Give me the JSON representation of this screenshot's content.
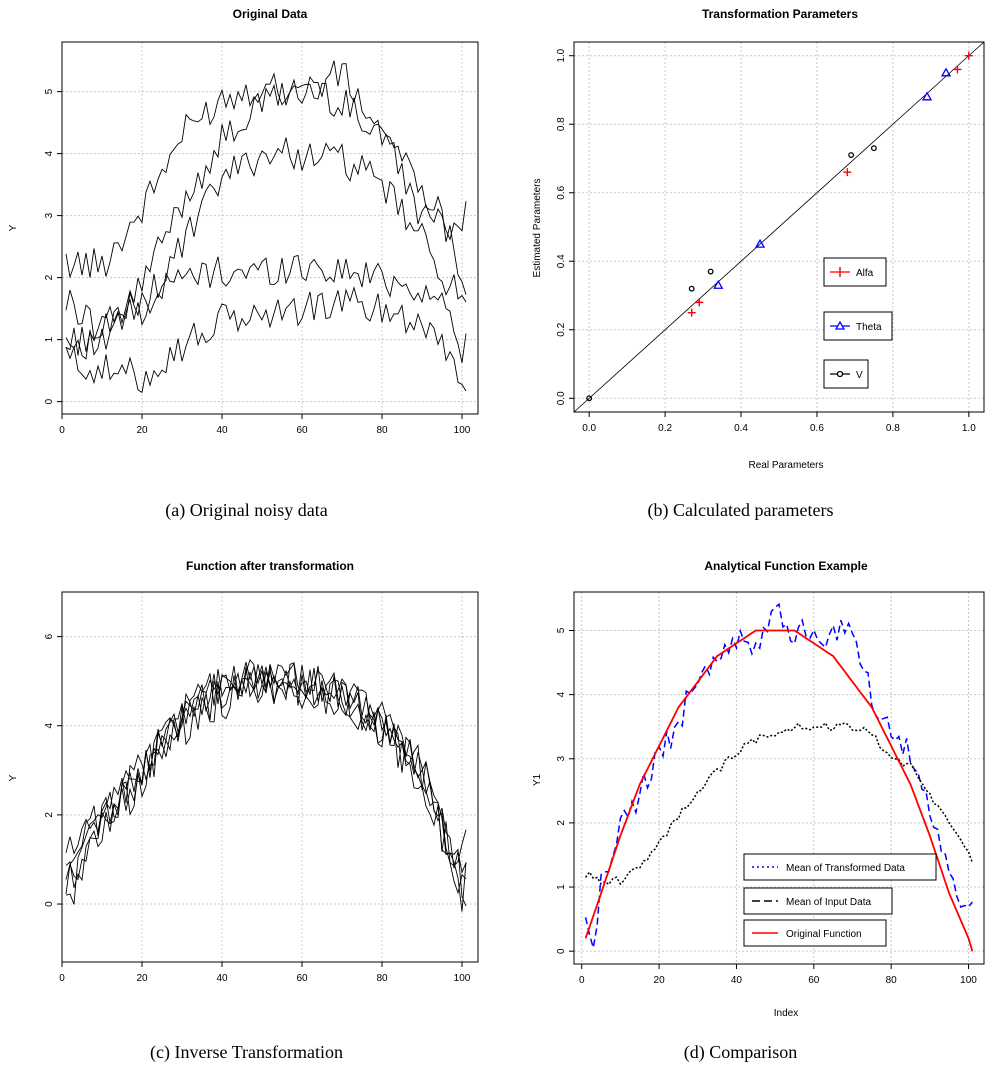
{
  "panels": [
    {
      "title": "Original Data",
      "caption": "(a)  Original noisy data",
      "xlabel": "",
      "ylabel": "Y"
    },
    {
      "title": "Transformation Parameters",
      "caption": "(b)  Calculated parameters",
      "xlabel": "Real Parameters",
      "ylabel": "Estimated Parameters"
    },
    {
      "title": "Function after transformation",
      "caption": "(c)  Inverse Transformation",
      "xlabel": "",
      "ylabel": "Y"
    },
    {
      "title": "Analytical Function Example",
      "caption": "(d)  Comparison",
      "xlabel": "Index",
      "ylabel": "Y1"
    }
  ],
  "chart_data": [
    {
      "type": "line",
      "title": "Original Data",
      "xlabel": "",
      "ylabel": "Y",
      "xlim": [
        0,
        104
      ],
      "ylim": [
        -0.2,
        5.8
      ],
      "xticks": [
        0,
        20,
        40,
        60,
        80,
        100
      ],
      "yticks": [
        0,
        1,
        2,
        3,
        4,
        5
      ],
      "grid": true,
      "line_color": "#000000",
      "series": [
        {
          "x": [
            1,
            10,
            20,
            30,
            40,
            50,
            60,
            70,
            80,
            90,
            95,
            100,
            101
          ],
          "values": [
            2.25,
            2.2,
            3.1,
            4.3,
            4.9,
            5.1,
            5.0,
            5.3,
            4.3,
            3.0,
            2.8,
            3.0,
            3.0
          ]
        },
        {
          "x": [
            1,
            10,
            20,
            30,
            40,
            50,
            60,
            70,
            80,
            90,
            95,
            100,
            101
          ],
          "values": [
            1.0,
            0.9,
            1.9,
            3.2,
            4.2,
            4.8,
            5.1,
            4.8,
            4.4,
            3.5,
            3.0,
            2.1,
            1.8
          ]
        },
        {
          "x": [
            1,
            10,
            20,
            30,
            40,
            50,
            60,
            70,
            80,
            90,
            95,
            100,
            101
          ],
          "values": [
            0.9,
            1.2,
            1.5,
            2.5,
            3.6,
            4.0,
            4.0,
            3.9,
            3.5,
            2.6,
            2.1,
            1.6,
            1.5
          ]
        },
        {
          "x": [
            1,
            10,
            20,
            30,
            40,
            50,
            60,
            70,
            80,
            90,
            95,
            100,
            101
          ],
          "values": [
            1.6,
            1.2,
            1.6,
            2.0,
            2.1,
            2.1,
            2.2,
            2.1,
            2.0,
            1.8,
            1.6,
            0.9,
            0.9
          ]
        },
        {
          "x": [
            1,
            10,
            20,
            30,
            40,
            50,
            60,
            70,
            80,
            90,
            95,
            100,
            101
          ],
          "values": [
            0.7,
            0.5,
            0.4,
            0.9,
            1.3,
            1.4,
            1.5,
            1.6,
            1.5,
            1.3,
            1.0,
            0.4,
            0.1
          ]
        }
      ]
    },
    {
      "type": "scatter",
      "title": "Transformation Parameters",
      "xlabel": "Real Parameters",
      "ylabel": "Estimated Parameters",
      "xlim": [
        -0.04,
        1.04
      ],
      "ylim": [
        -0.04,
        1.04
      ],
      "xticks": [
        0.0,
        0.2,
        0.4,
        0.6,
        0.8,
        1.0
      ],
      "yticks": [
        0.0,
        0.2,
        0.4,
        0.6,
        0.8,
        1.0
      ],
      "xtick_labels": [
        "0.0",
        "0.2",
        "0.4",
        "0.6",
        "0.8",
        "1.0"
      ],
      "ytick_labels": [
        "0.0",
        "0.2",
        "0.4",
        "0.6",
        "0.8",
        "1.0"
      ],
      "grid": true,
      "reference_line": {
        "from": [
          -0.04,
          -0.04
        ],
        "to": [
          1.04,
          1.04
        ]
      },
      "legend_position": "center-right",
      "series": [
        {
          "name": "Alfa",
          "marker": "plus",
          "color": "#ff0000",
          "points": [
            [
              0.27,
              0.25
            ],
            [
              0.29,
              0.28
            ],
            [
              0.68,
              0.66
            ],
            [
              0.97,
              0.96
            ],
            [
              1.0,
              1.0
            ]
          ]
        },
        {
          "name": "Theta",
          "marker": "triangle",
          "color": "#0000ff",
          "points": [
            [
              0.34,
              0.33
            ],
            [
              0.45,
              0.45
            ],
            [
              0.89,
              0.88
            ],
            [
              0.94,
              0.95
            ]
          ]
        },
        {
          "name": "V",
          "marker": "circle",
          "color": "#000000",
          "points": [
            [
              0.0,
              0.0
            ],
            [
              0.27,
              0.32
            ],
            [
              0.32,
              0.37
            ],
            [
              0.69,
              0.71
            ],
            [
              0.75,
              0.73
            ]
          ]
        }
      ]
    },
    {
      "type": "line",
      "title": "Function after transformation",
      "xlabel": "",
      "ylabel": "Y",
      "xlim": [
        0,
        104
      ],
      "ylim": [
        -1.3,
        7.0
      ],
      "xticks": [
        0,
        20,
        40,
        60,
        80,
        100
      ],
      "yticks": [
        0,
        2,
        4,
        6
      ],
      "grid": true,
      "line_color": "#000000",
      "series": [
        {
          "x": [
            1,
            10,
            20,
            30,
            40,
            50,
            60,
            70,
            80,
            90,
            95,
            100,
            101
          ],
          "values": [
            1.3,
            1.8,
            3.0,
            4.4,
            4.9,
            5.0,
            5.0,
            4.8,
            4.2,
            3.0,
            1.8,
            0.6,
            0.3
          ]
        },
        {
          "x": [
            1,
            10,
            20,
            30,
            40,
            50,
            60,
            70,
            80,
            90,
            95,
            100,
            101
          ],
          "values": [
            0.3,
            1.8,
            2.9,
            4.2,
            4.8,
            5.1,
            4.9,
            4.5,
            4.0,
            2.8,
            1.8,
            0.4,
            0.2
          ]
        },
        {
          "x": [
            1,
            10,
            20,
            30,
            40,
            50,
            60,
            70,
            80,
            90,
            95,
            100,
            101
          ],
          "values": [
            0.8,
            2.0,
            3.1,
            4.0,
            4.6,
            4.8,
            4.8,
            4.6,
            4.0,
            3.0,
            1.9,
            0.8,
            0.5
          ]
        },
        {
          "x": [
            1,
            10,
            20,
            30,
            40,
            50,
            60,
            70,
            80,
            90,
            95,
            100,
            101
          ],
          "values": [
            0.4,
            1.7,
            2.8,
            4.1,
            4.7,
            4.9,
            5.0,
            4.7,
            4.1,
            2.9,
            1.6,
            1.0,
            1.5
          ]
        },
        {
          "x": [
            1,
            10,
            20,
            30,
            40,
            50,
            60,
            70,
            80,
            90,
            95,
            100,
            101
          ],
          "values": [
            0.0,
            2.0,
            3.0,
            4.3,
            4.9,
            5.0,
            5.0,
            4.7,
            3.9,
            2.9,
            1.5,
            0.3,
            0.8
          ]
        }
      ]
    },
    {
      "type": "line",
      "title": "Analytical Function Example",
      "xlabel": "Index",
      "ylabel": "Y1",
      "xlim": [
        -2,
        104
      ],
      "ylim": [
        -0.2,
        5.6
      ],
      "xticks": [
        0,
        20,
        40,
        60,
        80,
        100
      ],
      "yticks": [
        0,
        1,
        2,
        3,
        4,
        5
      ],
      "grid": true,
      "legend_position": "bottom-right",
      "series": [
        {
          "name": "Mean of Transformed Data",
          "color": "#0000ff",
          "dash": "dotted",
          "x": [
            1,
            3,
            5,
            10,
            15,
            20,
            25,
            30,
            35,
            40,
            45,
            50,
            55,
            60,
            65,
            70,
            75,
            80,
            85,
            90,
            95,
            100,
            101
          ],
          "values": [
            0.5,
            -0.1,
            1.0,
            1.9,
            2.5,
            3.0,
            3.6,
            4.2,
            4.6,
            4.8,
            4.8,
            5.3,
            5.0,
            4.9,
            4.9,
            5.0,
            4.0,
            3.5,
            3.1,
            2.2,
            1.2,
            0.6,
            0.6
          ]
        },
        {
          "name": "Mean of Input Data",
          "color": "#000000",
          "dash": "dashed",
          "x": [
            1,
            5,
            10,
            15,
            20,
            25,
            30,
            35,
            40,
            45,
            50,
            55,
            60,
            65,
            70,
            75,
            80,
            85,
            90,
            95,
            100,
            101
          ],
          "values": [
            1.2,
            1.1,
            1.1,
            1.3,
            1.7,
            2.1,
            2.5,
            2.8,
            3.1,
            3.3,
            3.4,
            3.5,
            3.5,
            3.5,
            3.5,
            3.4,
            3.0,
            2.9,
            2.4,
            2.0,
            1.5,
            1.4
          ]
        },
        {
          "name": "Original Function",
          "color": "#ff0000",
          "dash": "solid",
          "x": [
            1,
            5,
            10,
            15,
            20,
            25,
            30,
            35,
            40,
            45,
            50,
            55,
            60,
            65,
            70,
            75,
            80,
            85,
            90,
            95,
            100,
            101
          ],
          "values": [
            0.2,
            0.9,
            1.8,
            2.6,
            3.2,
            3.8,
            4.2,
            4.6,
            4.8,
            5.0,
            5.0,
            5.0,
            4.8,
            4.6,
            4.2,
            3.8,
            3.2,
            2.6,
            1.8,
            0.9,
            0.2,
            0.0
          ]
        }
      ]
    }
  ]
}
